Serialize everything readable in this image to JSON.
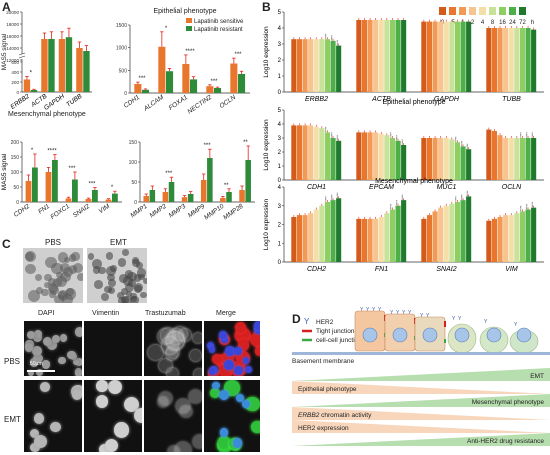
{
  "panel_labels": {
    "a": "A",
    "b": "B",
    "c": "C",
    "d": "D"
  },
  "colors": {
    "orange": "#e8762c",
    "green": "#2e8b3a",
    "error": "#e2231a"
  },
  "chart_data": [
    {
      "id": "A_top_left",
      "type": "bar",
      "title": "",
      "ylabel": "MAS5 signal",
      "categories": [
        "ERBB2",
        "ACTB",
        "GAPDH",
        "TUBB"
      ],
      "yticks": [
        "0",
        "200",
        "400",
        "600",
        "12000",
        "14000",
        "16000",
        "18000",
        "20000"
      ],
      "series": [
        {
          "name": "Lapatinib sensitive",
          "values": [
            250,
            15500,
            15500,
            14000
          ],
          "errors": [
            60,
            1000,
            1200,
            1000
          ]
        },
        {
          "name": "Lapatinib resistant",
          "values": [
            40,
            15500,
            15800,
            13500
          ],
          "errors": [
            15,
            1200,
            1500,
            900
          ]
        }
      ],
      "significance": [
        "*",
        "",
        "",
        ""
      ]
    },
    {
      "id": "A_top_right",
      "type": "bar",
      "title": "Epithelial phenotype",
      "categories": [
        "CDH1",
        "ALCAM",
        "FOXA1",
        "NECTIN2",
        "OCLN"
      ],
      "yticks": [
        "0",
        "500",
        "1000",
        "1500"
      ],
      "ylim": [
        0,
        1500
      ],
      "series": [
        {
          "name": "Lapatinib sensitive",
          "values": [
            200,
            1020,
            640,
            150,
            650
          ],
          "errors": [
            40,
            330,
            200,
            30,
            120
          ]
        },
        {
          "name": "Lapatinib resistant",
          "values": [
            70,
            480,
            300,
            110,
            420
          ],
          "errors": [
            20,
            60,
            60,
            20,
            60
          ]
        }
      ],
      "significance": [
        "***",
        "*",
        "****",
        "***",
        "***"
      ],
      "legend": [
        "Lapatinib sensitive",
        "Lapatinib resistant"
      ]
    },
    {
      "id": "A_bottom_left",
      "type": "bar",
      "title": "Mesenchymal phenotype",
      "ylabel": "MAS5 signal",
      "categories": [
        "CDH2",
        "FN1",
        "FOXC1",
        "SNAI2",
        "VIM"
      ],
      "yticks": [
        "0",
        "50",
        "100",
        "150",
        "200"
      ],
      "ylim": [
        0,
        200
      ],
      "series": [
        {
          "name": "Lapatinib sensitive",
          "values": [
            70,
            100,
            12,
            10,
            8
          ],
          "errors": [
            20,
            15,
            4,
            3,
            3
          ]
        },
        {
          "name": "Lapatinib resistant",
          "values": [
            115,
            140,
            75,
            40,
            28
          ],
          "errors": [
            45,
            18,
            25,
            8,
            8
          ]
        }
      ],
      "significance": [
        "*",
        "****",
        "***",
        "***",
        "*"
      ]
    },
    {
      "id": "A_bottom_right",
      "type": "bar",
      "title": "",
      "categories": [
        "MMP1",
        "MMP2",
        "MMP3",
        "MMP9",
        "MMP10",
        "MMP28"
      ],
      "yticks": [
        "0",
        "50",
        "100",
        "150"
      ],
      "ylim": [
        0,
        150
      ],
      "series": [
        {
          "name": "Lapatinib sensitive",
          "values": [
            15,
            25,
            12,
            55,
            10,
            30
          ],
          "errors": [
            5,
            8,
            4,
            15,
            4,
            10
          ]
        },
        {
          "name": "Lapatinib resistant",
          "values": [
            30,
            50,
            20,
            110,
            25,
            105
          ],
          "errors": [
            10,
            12,
            6,
            22,
            8,
            35
          ]
        }
      ],
      "significance": [
        "",
        "***",
        "",
        "***",
        "**",
        "**"
      ]
    },
    {
      "id": "B",
      "type": "bar",
      "ylabel": "Log10 expression",
      "time_points": [
        "0",
        ".5",
        "1",
        "2",
        "4",
        "8",
        "16",
        "24",
        "72",
        "h"
      ],
      "time_colors": [
        "#d45a1a",
        "#e8762c",
        "#f29a55",
        "#f7c48f",
        "#f5dfa8",
        "#c9e29a",
        "#8fce63",
        "#4caf48",
        "#1f7a2e"
      ],
      "rows": [
        {
          "title": "",
          "yticks": [
            "0",
            "1",
            "2",
            "3",
            "4",
            "5"
          ],
          "ylim": [
            0,
            5
          ],
          "genes": [
            {
              "name": "ERBB2",
              "values": [
                3.3,
                3.3,
                3.3,
                3.3,
                3.3,
                3.3,
                3.3,
                3.2,
                2.9
              ],
              "sig": "****"
            },
            {
              "name": "ACTB",
              "values": [
                4.5,
                4.5,
                4.5,
                4.5,
                4.5,
                4.5,
                4.5,
                4.5,
                4.5
              ],
              "sig": ""
            },
            {
              "name": "GAPDH",
              "values": [
                4.4,
                4.4,
                4.4,
                4.4,
                4.4,
                4.4,
                4.4,
                4.4,
                4.4
              ],
              "sig": ""
            },
            {
              "name": "TUBB",
              "values": [
                4.0,
                4.0,
                4.0,
                4.0,
                4.0,
                4.0,
                4.0,
                4.0,
                3.9
              ],
              "sig": ""
            }
          ]
        },
        {
          "title": "Epithelial phenotype",
          "yticks": [
            "0",
            "1",
            "2",
            "3",
            "4",
            "5"
          ],
          "ylim": [
            0,
            5
          ],
          "genes": [
            {
              "name": "CDH1",
              "values": [
                3.9,
                3.9,
                3.9,
                3.9,
                3.8,
                3.7,
                3.4,
                3.0,
                2.8
              ],
              "sig": "****"
            },
            {
              "name": "EPCAM",
              "values": [
                3.4,
                3.4,
                3.4,
                3.4,
                3.3,
                3.2,
                3.0,
                2.8,
                2.5
              ],
              "sig": "****"
            },
            {
              "name": "MUC1",
              "values": [
                3.0,
                3.0,
                3.0,
                3.0,
                3.0,
                2.9,
                2.7,
                2.4,
                2.2
              ],
              "sig": "****"
            },
            {
              "name": "OCLN",
              "values": [
                3.6,
                3.5,
                3.2,
                3.0,
                3.0,
                3.0,
                3.0,
                3.0,
                3.0
              ],
              "sig": "****"
            }
          ]
        },
        {
          "title": "Mesenchymal phenotype",
          "yticks": [
            "0",
            "1",
            "2",
            "3",
            "4"
          ],
          "ylim": [
            0,
            4
          ],
          "genes": [
            {
              "name": "CDH2",
              "values": [
                2.4,
                2.5,
                2.5,
                2.6,
                2.8,
                3.0,
                3.2,
                3.3,
                3.4
              ],
              "sig": "****"
            },
            {
              "name": "FN1",
              "values": [
                2.3,
                2.3,
                2.3,
                2.3,
                2.4,
                2.6,
                2.8,
                3.0,
                3.3
              ],
              "sig": "****"
            },
            {
              "name": "SNAI2",
              "values": [
                2.3,
                2.5,
                2.7,
                2.9,
                3.0,
                3.1,
                3.2,
                3.3,
                3.5
              ],
              "sig": "****"
            },
            {
              "name": "VIM",
              "values": [
                2.2,
                2.3,
                2.4,
                2.5,
                2.5,
                2.6,
                2.7,
                2.8,
                2.9
              ],
              "sig": "****"
            }
          ]
        }
      ]
    }
  ],
  "panel_c": {
    "top_labels": [
      "PBS",
      "EMT"
    ],
    "col_headers": [
      "DAPI",
      "Vimentin",
      "Trastuzumab",
      "Merge"
    ],
    "row_labels": [
      "PBS",
      "EMT"
    ],
    "scale_bar": "50µm"
  },
  "panel_d": {
    "legend": [
      {
        "symbol": "Y",
        "label": "HER2"
      },
      {
        "symbol": "tight",
        "label": "Tight junction"
      },
      {
        "symbol": "cellcell",
        "label": "cell-cell junction"
      }
    ],
    "membrane_label": "Basement membrane",
    "gradients": [
      {
        "label": "EMT",
        "dir": "increase",
        "align": "right"
      },
      {
        "label": "Epithelial phenotype",
        "dir": "decrease",
        "align": "left"
      },
      {
        "label": "Mesenchymal phenotype",
        "dir": "increase",
        "align": "right"
      },
      {
        "label": "ERBB2 chromatin activity",
        "dir": "decrease",
        "align": "left",
        "italic_part": "ERBB2"
      },
      {
        "label": "HER2 expression",
        "dir": "decrease",
        "align": "left"
      },
      {
        "label": "Anti-HER2 drug resistance",
        "dir": "increase",
        "align": "right"
      }
    ]
  }
}
